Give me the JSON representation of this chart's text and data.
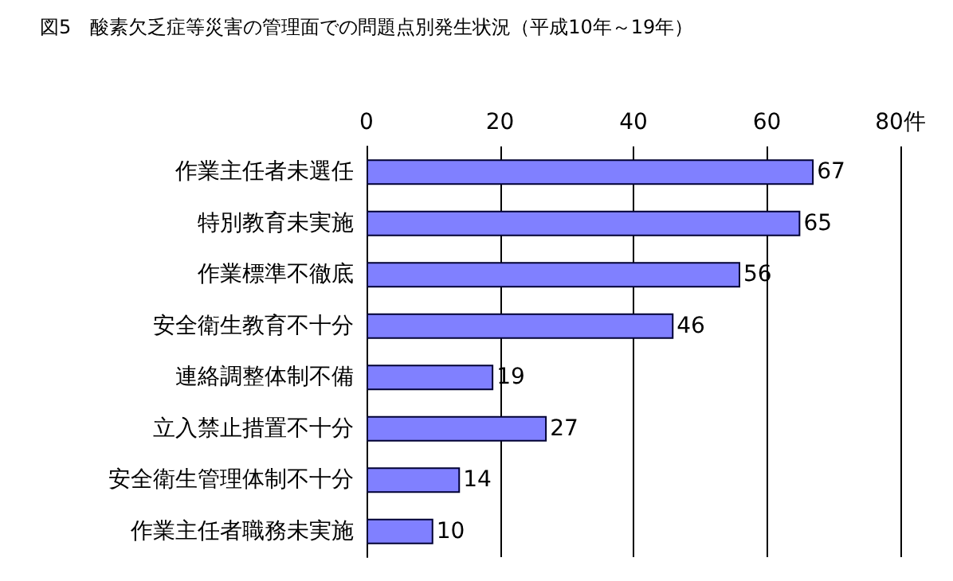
{
  "chart_data": {
    "type": "bar",
    "orientation": "horizontal",
    "title": "図5　酸素欠乏症等災害の管理面での問題点別発生状況（平成10年～19年）",
    "categories": [
      "作業主任者未選任",
      "特別教育未実施",
      "作業標準不徹底",
      "安全衛生教育不十分",
      "連絡調整体制不備",
      "立入禁止措置不十分",
      "安全衛生管理体制不十分",
      "作業主任者職務未実施"
    ],
    "values": [
      67,
      65,
      56,
      46,
      19,
      27,
      14,
      10
    ],
    "color": "#8080ff",
    "xlim": [
      0,
      80
    ],
    "xticks": [
      0,
      20,
      40,
      60,
      {
        "value": 80,
        "label": "80件"
      }
    ],
    "grid": "x",
    "data_labels": true
  }
}
